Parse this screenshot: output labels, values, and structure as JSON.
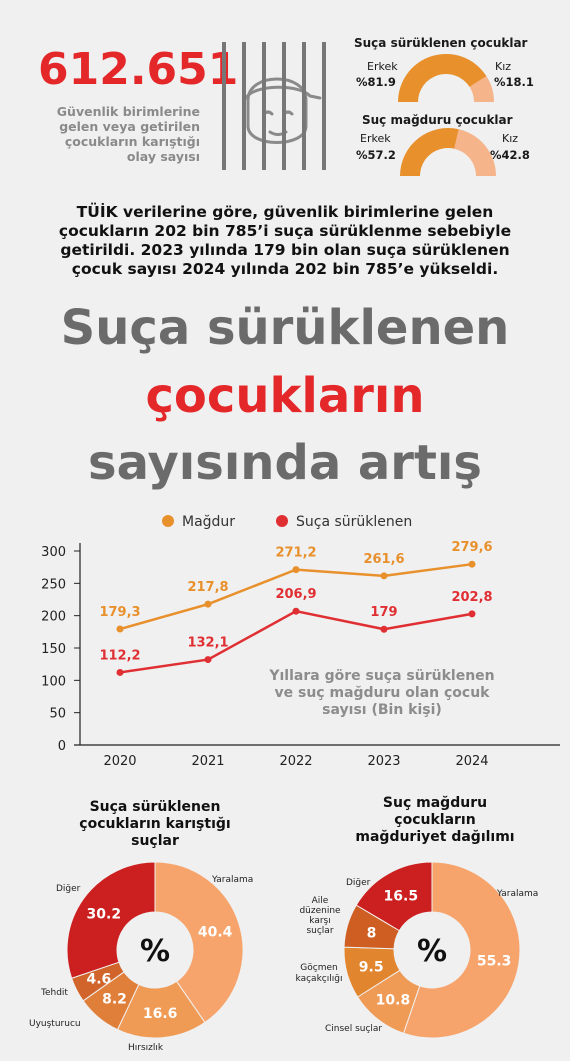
{
  "header": {
    "big_number": "612.651",
    "big_number_caption_lines": [
      "Güvenlik birimlerine",
      "gelen veya getirilen",
      "çocukların karıştığı",
      "olay sayısı"
    ]
  },
  "gauges": [
    {
      "title": "Suça sürüklenen çocuklar",
      "left_label": "Erkek",
      "left_value": "%81.9",
      "right_label": "Kız",
      "right_value": "%18.1",
      "male_share": 81.9
    },
    {
      "title": "Suç mağduru çocuklar",
      "left_label": "Erkek",
      "left_value": "%57.2",
      "right_label": "Kız",
      "right_value": "%42.8",
      "male_share": 57.2
    }
  ],
  "intro_lines": [
    "TÜİK verilerine göre, güvenlik birimlerine gelen",
    "çocukların 202 bin 785’i suça sürüklenme sebebiyle",
    "getirildi. 2023 yılında 179 bin olan suça sürüklenen",
    "çocuk sayısı 2024 yılında 202 bin 785’e yükseldi."
  ],
  "headline": {
    "line1": "Suça sürüklenen",
    "line2": "çocukların",
    "line3": "sayısında artış"
  },
  "chart_data": [
    {
      "type": "line",
      "x": [
        "2020",
        "2021",
        "2022",
        "2023",
        "2024"
      ],
      "series": [
        {
          "name": "Mağdur",
          "values": [
            179.3,
            217.8,
            271.2,
            261.6,
            279.6
          ],
          "labels": [
            "179,3",
            "217,8",
            "271,2",
            "261,6",
            "279,6"
          ],
          "color": "#e8902c"
        },
        {
          "name": "Suça sürüklenen",
          "values": [
            112.2,
            132.1,
            206.9,
            179,
            202.8
          ],
          "labels": [
            "112,2",
            "132,1",
            "206,9",
            "179",
            "202,8"
          ],
          "color": "#e02f33"
        }
      ],
      "yticks": [
        "0",
        "50",
        "100",
        "150",
        "200",
        "250",
        "300"
      ],
      "ylim": [
        0,
        300
      ],
      "grid": false,
      "legend_position": "top",
      "annotation_lines": [
        "Yıllara göre suça sürüklenen",
        "ve suç mağduru olan çocuk",
        "sayısı (Bin kişi)"
      ]
    },
    {
      "type": "pie",
      "title_lines": [
        "Suça sürüklenen",
        "çocukların karıştığı",
        "suçlar"
      ],
      "center_label": "%",
      "slices": [
        {
          "name": "Yaralama",
          "value": 40.4,
          "label": "40.4",
          "color": "#f6a46c"
        },
        {
          "name": "Hırsızlık",
          "value": 16.6,
          "label": "16.6",
          "color": "#ef9a55"
        },
        {
          "name": "Uyuşturucu",
          "value": 8.2,
          "label": "8.2",
          "color": "#e07f3a"
        },
        {
          "name": "Tehdit",
          "value": 4.6,
          "label": "4.6",
          "color": "#d0642a"
        },
        {
          "name": "Diğer",
          "value": 30.2,
          "label": "30.2",
          "color": "#cc1f1f"
        }
      ]
    },
    {
      "type": "pie",
      "title_lines": [
        "Suç mağduru",
        "çocukların",
        "mağduriyet dağılımı"
      ],
      "center_label": "%",
      "slices": [
        {
          "name": "Yaralama",
          "value": 55.3,
          "label": "55.3",
          "color": "#f6a46c"
        },
        {
          "name": "Cinsel suçlar",
          "value": 10.8,
          "label": "10.8",
          "color": "#ef9a55"
        },
        {
          "name": "Göçmen kaçakçılığı",
          "value": 9.5,
          "label": "9.5",
          "color": "#e2852f"
        },
        {
          "name": "Aile düzenine karşı suçlar",
          "value": 8,
          "label": "8",
          "color": "#cf5e22"
        },
        {
          "name": "Diğer",
          "value": 16.5,
          "label": "16.5",
          "color": "#cc1f1f"
        }
      ]
    }
  ]
}
